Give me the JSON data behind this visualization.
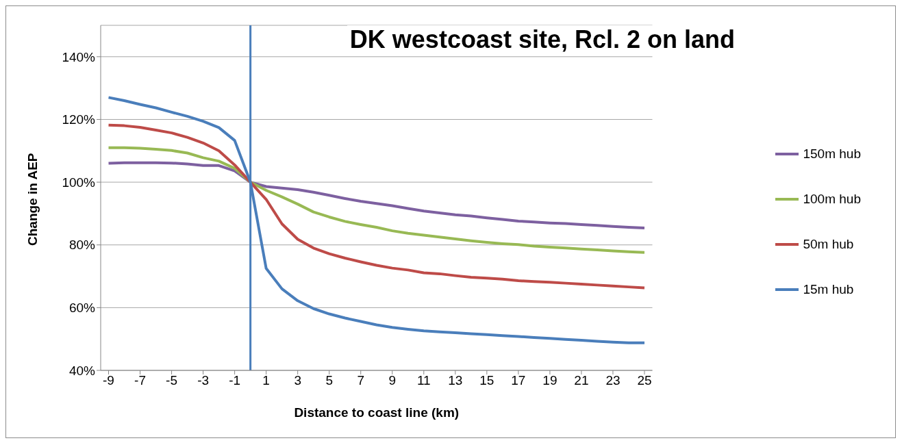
{
  "chart_data": {
    "type": "line",
    "title": "DK westcoast site, Rcl. 2 on land",
    "xlabel": "Distance to coast line (km)",
    "ylabel": "Change in AEP",
    "x": [
      -9,
      -8,
      -7,
      -6,
      -5,
      -4,
      -3,
      -2,
      -1,
      0,
      1,
      2,
      3,
      4,
      5,
      6,
      7,
      8,
      9,
      10,
      11,
      12,
      13,
      14,
      15,
      16,
      17,
      18,
      19,
      20,
      21,
      22,
      23,
      24,
      25
    ],
    "xlim": [
      -9.5,
      25.5
    ],
    "xticks": [
      -9,
      -7,
      -5,
      -3,
      -1,
      1,
      3,
      5,
      7,
      9,
      11,
      13,
      15,
      17,
      19,
      21,
      23,
      25
    ],
    "ylim": [
      40,
      150
    ],
    "yticks": [
      {
        "value": 40,
        "label": "40%"
      },
      {
        "value": 60,
        "label": "60%"
      },
      {
        "value": 80,
        "label": "80%"
      },
      {
        "value": 100,
        "label": "100%"
      },
      {
        "value": 120,
        "label": "120%"
      },
      {
        "value": 140,
        "label": "140%"
      }
    ],
    "grid": "y",
    "legend": "right",
    "marker": "none",
    "line_style": "solid",
    "ref_lines": [
      {
        "axis": "x",
        "value": 0,
        "color": "#4a7ebb"
      }
    ],
    "series": [
      {
        "name": "150m hub",
        "color": "#7d60a0",
        "values": [
          106,
          106.2,
          106.2,
          106.2,
          106.1,
          105.8,
          105.3,
          105.3,
          103.6,
          100,
          98.6,
          98.1,
          97.6,
          96.8,
          95.8,
          94.8,
          93.9,
          93.2,
          92.5,
          91.6,
          90.8,
          90.2,
          89.6,
          89.2,
          88.6,
          88.1,
          87.6,
          87.3,
          87,
          86.8,
          86.5,
          86.2,
          85.9,
          85.6,
          85.4
        ]
      },
      {
        "name": "100m hub",
        "color": "#98b954",
        "values": [
          111,
          111,
          110.8,
          110.5,
          110.1,
          109.3,
          107.8,
          106.7,
          104.4,
          100,
          97.4,
          95.3,
          93,
          90.5,
          88.9,
          87.5,
          86.5,
          85.6,
          84.5,
          83.7,
          83.1,
          82.5,
          81.9,
          81.3,
          80.8,
          80.4,
          80.1,
          79.6,
          79.3,
          79,
          78.7,
          78.4,
          78.1,
          77.8,
          77.6
        ]
      },
      {
        "name": "50m hub",
        "color": "#be4b48",
        "values": [
          118.2,
          118,
          117.5,
          116.6,
          115.7,
          114.3,
          112.5,
          110,
          105.5,
          100,
          94.5,
          86.7,
          81.8,
          79,
          77.2,
          75.8,
          74.6,
          73.5,
          72.6,
          72,
          71.1,
          70.8,
          70.2,
          69.7,
          69.4,
          69.1,
          68.6,
          68.3,
          68.1,
          67.8,
          67.5,
          67.2,
          66.9,
          66.6,
          66.3
        ]
      },
      {
        "name": "15m hub",
        "color": "#4a7ebb",
        "values": [
          127,
          126,
          124.8,
          123.7,
          122.3,
          121,
          119.4,
          117.4,
          113.3,
          100,
          72.5,
          66,
          62.2,
          59.7,
          58,
          56.7,
          55.6,
          54.5,
          53.7,
          53.1,
          52.6,
          52.3,
          52,
          51.7,
          51.4,
          51.1,
          50.8,
          50.5,
          50.2,
          49.9,
          49.6,
          49.3,
          49,
          48.8,
          48.8
        ]
      }
    ]
  }
}
